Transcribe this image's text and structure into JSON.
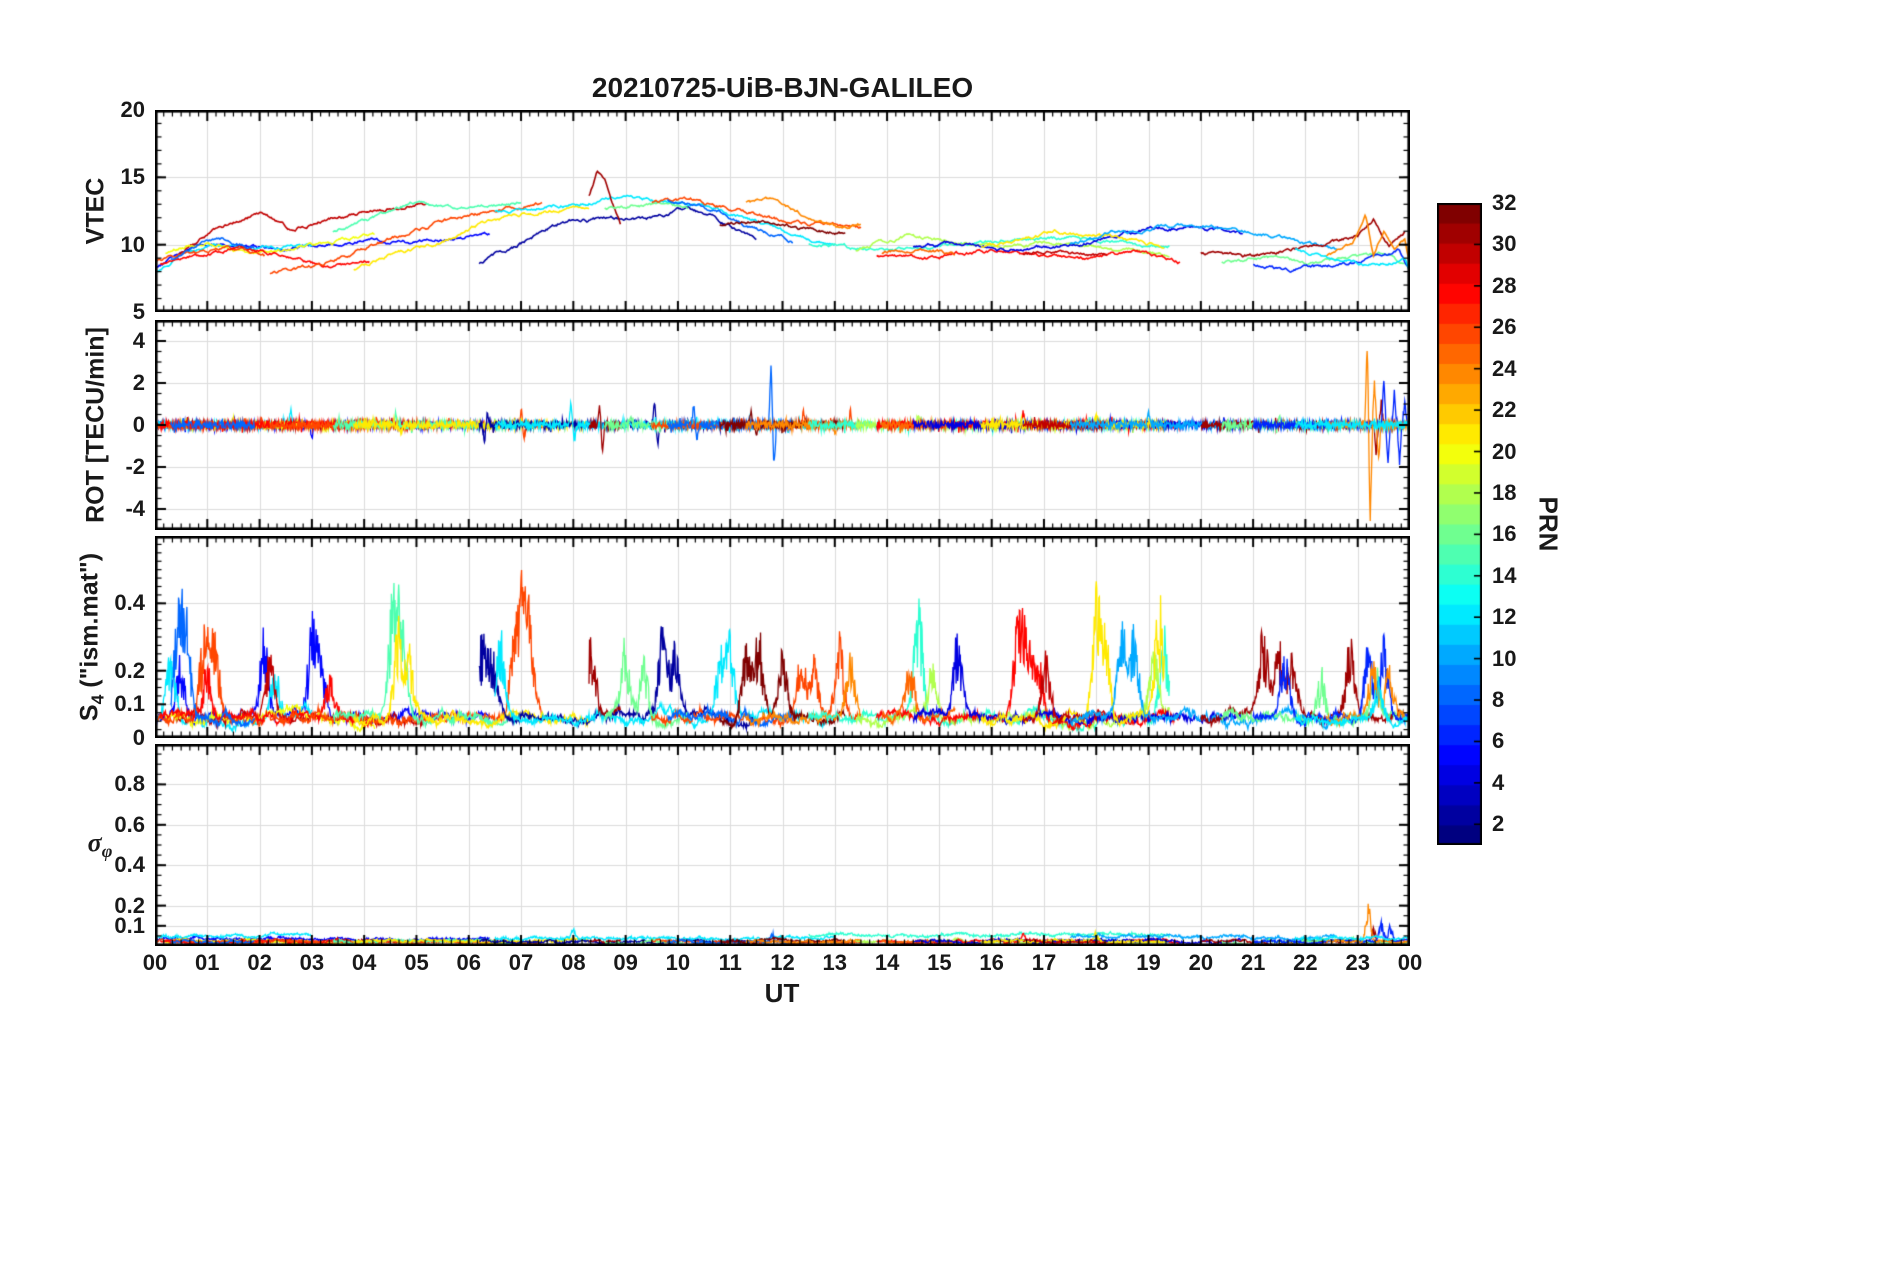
{
  "title": "20210725-UiB-BJN-GALILEO",
  "x_axis": {
    "label": "UT",
    "min": 0,
    "max": 24,
    "tick_labels": [
      "00",
      "01",
      "02",
      "03",
      "04",
      "05",
      "06",
      "07",
      "08",
      "09",
      "10",
      "11",
      "12",
      "13",
      "14",
      "15",
      "16",
      "17",
      "18",
      "19",
      "20",
      "21",
      "22",
      "23",
      "00"
    ]
  },
  "colorbar": {
    "label": "PRN",
    "vmin": 1,
    "vmax": 32,
    "colormap": "jet",
    "ticks": [
      2,
      4,
      6,
      8,
      10,
      12,
      14,
      16,
      18,
      20,
      22,
      24,
      26,
      28,
      30,
      32
    ]
  },
  "panels": {
    "vtec": {
      "ylabel": "VTEC",
      "ylim": [
        5,
        20
      ],
      "yticks": [
        5,
        10,
        15,
        20
      ],
      "minor": 1
    },
    "rot": {
      "ylabel": "ROT [TECU/min]",
      "ylim": [
        -5,
        5
      ],
      "yticks": [
        -4,
        -2,
        0,
        2,
        4
      ],
      "minor": 0.5
    },
    "s4": {
      "label_main": "S",
      "label_sub": "4",
      "label_rest": " (\"ism.mat\")",
      "ylim": [
        0,
        0.6
      ],
      "yticks": [
        0,
        0.1,
        0.2,
        0.4
      ],
      "minor": 0.025
    },
    "sigma": {
      "label_main": "σ",
      "label_sub": "φ",
      "ylim": [
        0,
        1
      ],
      "yticks": [
        0.1,
        0.2,
        0.4,
        0.6,
        0.8
      ],
      "minor": 0.05
    }
  },
  "chart_data": {
    "type": "line",
    "x_unit": "hours UT",
    "grid": true,
    "arcs": [
      {
        "prn": 5,
        "sb": 0.035,
        "x": [
          0,
          0.8,
          1.6,
          2.4,
          3.2,
          4,
          4.8,
          5.6,
          6.4
        ],
        "y": [
          8.3,
          9.9,
          10.1,
          9.6,
          10,
          10.3,
          10.1,
          10.4,
          10.9
        ]
      },
      {
        "prn": 12,
        "sb": 0.05,
        "x": [
          0,
          0.6,
          1.2,
          1.8,
          2.4,
          3
        ],
        "y": [
          7.8,
          9.6,
          10.1,
          9.9,
          9.7,
          10
        ]
      },
      {
        "prn": 30,
        "x": [
          0.4,
          1.2,
          2,
          2.6,
          3.2,
          4,
          4.6,
          5.2
        ],
        "y": [
          9.1,
          11.3,
          12.3,
          11.2,
          11.8,
          12.4,
          12.8,
          13
        ]
      },
      {
        "prn": 20,
        "x": [
          0.2,
          1,
          1.8,
          2.6,
          3.4,
          4.2
        ],
        "y": [
          9.3,
          10.4,
          9.2,
          9.6,
          10.2,
          10.6
        ]
      },
      {
        "prn": 26,
        "x": [
          0,
          0.7,
          1.4,
          2.1
        ],
        "y": [
          8.8,
          9.4,
          9.9,
          9.2
        ]
      },
      {
        "prn": 28,
        "x": [
          0.1,
          0.9,
          1.7,
          2.5,
          3.3,
          4.1
        ],
        "y": [
          8.6,
          9.2,
          9.8,
          9,
          8.3,
          8.8
        ]
      },
      {
        "prn": 8,
        "x": [
          0.3,
          1.1,
          1.9
        ],
        "y": [
          9,
          10.5,
          9.9
        ]
      },
      {
        "prn": 26,
        "x": [
          2.2,
          3,
          3.8,
          4.6,
          5.4,
          6.2,
          7,
          7.4
        ],
        "y": [
          7.9,
          8.4,
          9.4,
          10.6,
          11.6,
          12.3,
          12.9,
          13.1
        ]
      },
      {
        "prn": 15,
        "x": [
          3.4,
          4.2,
          5,
          5.8,
          6.6,
          7
        ],
        "y": [
          10.9,
          12,
          13.2,
          12.7,
          13,
          13.1
        ]
      },
      {
        "prn": 21,
        "x": [
          3.8,
          4.6,
          5.4,
          6.2,
          7,
          7.8,
          8.3
        ],
        "y": [
          8.2,
          9.4,
          10.1,
          11.4,
          12.3,
          12.7,
          12.9
        ]
      },
      {
        "prn": 2,
        "x": [
          6.2,
          7,
          7.8,
          8.6,
          9.4,
          10.2,
          11,
          11.5
        ],
        "y": [
          8.6,
          10.1,
          11.7,
          11.9,
          12,
          12.7,
          11.4,
          10.3
        ]
      },
      {
        "prn": 12,
        "sb": 0.04,
        "x": [
          6.5,
          7.3,
          8.1,
          8.9,
          9.7,
          10.5,
          11.3,
          12.1,
          13
        ],
        "y": [
          12.4,
          12.8,
          13.1,
          13.5,
          13.3,
          12.9,
          12,
          10.8,
          9.9
        ]
      },
      {
        "prn": 31,
        "x": [
          8.3,
          8.45,
          8.6,
          8.75,
          8.9
        ],
        "y": [
          13.6,
          15.4,
          14.7,
          12.9,
          11.4
        ]
      },
      {
        "prn": 16,
        "x": [
          8.6,
          9.4,
          10.2
        ],
        "y": [
          12.8,
          13,
          12.7
        ]
      },
      {
        "prn": 26,
        "x": [
          9.5,
          10.3,
          11.1,
          11.9,
          12.7,
          13.5
        ],
        "y": [
          13.2,
          13.4,
          12.6,
          11.9,
          11.5,
          11.3
        ]
      },
      {
        "prn": 8,
        "x": [
          9.8,
          10.4,
          11,
          11.6,
          12.2
        ],
        "y": [
          13.4,
          12.9,
          12.1,
          11,
          10.3
        ]
      },
      {
        "prn": 32,
        "x": [
          10.8,
          11.6,
          12.4,
          13.2
        ],
        "y": [
          11.5,
          11.8,
          11.2,
          10.9
        ]
      },
      {
        "prn": 24,
        "x": [
          11.3,
          11.9,
          12.5,
          13.1,
          13.5
        ],
        "y": [
          13.1,
          13.4,
          12.1,
          11.1,
          11.4
        ]
      },
      {
        "prn": 14,
        "sb": 0.055,
        "x": [
          12.5,
          13.5,
          14.5,
          15.5,
          16.5,
          17.5,
          18.4,
          19.4
        ],
        "y": [
          10.1,
          9.7,
          9.6,
          10.1,
          10.4,
          10.5,
          10.1,
          9.8
        ]
      },
      {
        "prn": 18,
        "x": [
          13.4,
          14.4,
          15.4,
          16.4,
          17.4,
          18.4,
          19.4
        ],
        "y": [
          9.6,
          10.7,
          10,
          9.9,
          10.1,
          9.6,
          9.3
        ]
      },
      {
        "prn": 28,
        "x": [
          13.8,
          14.8,
          15.8,
          16.8,
          17.8,
          18.8,
          19.6
        ],
        "y": [
          9.2,
          9,
          9.5,
          9.2,
          9,
          9.4,
          8.7
        ]
      },
      {
        "prn": 25,
        "x": [
          13.9,
          14.6,
          15.3
        ],
        "y": [
          9.4,
          9.7,
          9.3
        ]
      },
      {
        "prn": 4,
        "x": [
          14.5,
          15.4,
          16.3,
          17.2,
          18.1,
          19,
          19.9,
          20.8
        ],
        "y": [
          9.9,
          10.1,
          9.6,
          9.9,
          10.4,
          11.1,
          11.4,
          10.7
        ]
      },
      {
        "prn": 21,
        "x": [
          15.8,
          16.5,
          17.2,
          17.9,
          18.6,
          19.3
        ],
        "y": [
          9.9,
          10.3,
          11,
          10.7,
          10.3,
          10
        ]
      },
      {
        "prn": 30,
        "x": [
          16.6,
          17.4,
          18.2
        ],
        "y": [
          9.3,
          9.5,
          9.2
        ]
      },
      {
        "prn": 10,
        "sb": 0.045,
        "x": [
          17.5,
          18.4,
          19.3,
          20.2,
          21.1,
          22,
          22.6
        ],
        "y": [
          10.1,
          10.9,
          11.3,
          11.4,
          10.9,
          10.1,
          9.6
        ]
      },
      {
        "prn": 31,
        "x": [
          20,
          20.8,
          21.6,
          22.4,
          23,
          23.3,
          23.6,
          23.9
        ],
        "y": [
          9.4,
          9.1,
          9.6,
          10.1,
          10.6,
          11.8,
          9.9,
          10.9
        ]
      },
      {
        "prn": 16,
        "x": [
          20.4,
          21.2,
          22,
          22.8,
          23.6,
          24
        ],
        "y": [
          8.8,
          9.1,
          8.6,
          8.9,
          9.3,
          8.1
        ]
      },
      {
        "prn": 6,
        "x": [
          21,
          21.7,
          22.4,
          23.1,
          23.8,
          24
        ],
        "y": [
          8.6,
          8.1,
          8.4,
          8.8,
          9.6,
          8
        ]
      },
      {
        "prn": 24,
        "x": [
          22.4,
          22.9,
          23.15,
          23.3,
          23.5,
          23.7,
          23.9,
          24
        ],
        "y": [
          9.1,
          10,
          12.4,
          9.3,
          11.2,
          9.8,
          10.4,
          8.2
        ]
      },
      {
        "prn": 12,
        "sb": 0.04,
        "x": [
          21.8,
          22.5,
          23.2,
          23.9,
          24
        ],
        "y": [
          9.6,
          9.1,
          8.6,
          8.9,
          8
        ]
      }
    ],
    "rot": {
      "noise_amp": 0.18,
      "spikes": [
        [
          8,
          11.78,
          2.9
        ],
        [
          8,
          11.84,
          -2.0
        ],
        [
          24,
          23.18,
          3.6
        ],
        [
          24,
          23.24,
          -4.4
        ],
        [
          24,
          23.32,
          2.0
        ],
        [
          24,
          23.4,
          -1.6
        ],
        [
          6,
          23.5,
          2.1
        ],
        [
          6,
          23.58,
          -1.8
        ],
        [
          6,
          23.7,
          1.6
        ],
        [
          6,
          23.8,
          -1.9
        ],
        [
          6,
          23.9,
          1.2
        ],
        [
          31,
          23.35,
          -1.4
        ],
        [
          31,
          23.45,
          1.1
        ],
        [
          31,
          8.5,
          0.9
        ],
        [
          31,
          8.56,
          -1.3
        ],
        [
          2,
          9.55,
          1.1
        ],
        [
          2,
          9.62,
          -0.9
        ],
        [
          8,
          10.3,
          0.9
        ],
        [
          8,
          10.36,
          -0.7
        ],
        [
          12,
          7.95,
          1.0
        ],
        [
          12,
          8.02,
          -0.8
        ],
        [
          26,
          13.3,
          0.7
        ],
        [
          2,
          6.3,
          -0.8
        ],
        [
          2,
          6.36,
          0.6
        ],
        [
          12,
          2.6,
          0.7
        ],
        [
          5,
          3.0,
          -0.6
        ],
        [
          18,
          14.6,
          0.6
        ],
        [
          10,
          19.0,
          0.6
        ],
        [
          16,
          21.5,
          0.5
        ],
        [
          28,
          16.6,
          0.6
        ],
        [
          21,
          18.0,
          0.5
        ],
        [
          26,
          12.4,
          0.6
        ],
        [
          24,
          13.0,
          -0.5
        ],
        [
          15,
          4.6,
          0.5
        ],
        [
          21,
          4.7,
          -0.5
        ],
        [
          26,
          7.0,
          0.6
        ],
        [
          26,
          7.06,
          -0.5
        ],
        [
          16,
          9.1,
          0.5
        ],
        [
          32,
          11.4,
          0.6
        ],
        [
          32,
          11.5,
          -0.5
        ]
      ]
    },
    "s4": {
      "baseline": 0.06,
      "bursts": [
        [
          8,
          0.45,
          0.34
        ],
        [
          8,
          0.6,
          0.28
        ],
        [
          12,
          0.3,
          0.24
        ],
        [
          5,
          0.5,
          0.2
        ],
        [
          26,
          0.95,
          0.33
        ],
        [
          26,
          1.15,
          0.27
        ],
        [
          28,
          1.0,
          0.18
        ],
        [
          5,
          2.1,
          0.26
        ],
        [
          30,
          2.2,
          0.2
        ],
        [
          12,
          2.3,
          0.18
        ],
        [
          5,
          3.0,
          0.31
        ],
        [
          5,
          3.18,
          0.24
        ],
        [
          28,
          3.35,
          0.14
        ],
        [
          15,
          4.55,
          0.44
        ],
        [
          15,
          4.72,
          0.33
        ],
        [
          21,
          4.65,
          0.3
        ],
        [
          21,
          4.85,
          0.24
        ],
        [
          2,
          6.25,
          0.29
        ],
        [
          2,
          6.45,
          0.2
        ],
        [
          12,
          6.6,
          0.27
        ],
        [
          26,
          6.85,
          0.22
        ],
        [
          26,
          7.0,
          0.36
        ],
        [
          26,
          7.15,
          0.3
        ],
        [
          31,
          8.35,
          0.26
        ],
        [
          16,
          9.0,
          0.24
        ],
        [
          16,
          9.35,
          0.21
        ],
        [
          2,
          9.7,
          0.29
        ],
        [
          2,
          9.95,
          0.24
        ],
        [
          12,
          10.8,
          0.2
        ],
        [
          12,
          11.0,
          0.24
        ],
        [
          32,
          11.3,
          0.27
        ],
        [
          32,
          11.55,
          0.29
        ],
        [
          32,
          12.0,
          0.2
        ],
        [
          26,
          12.35,
          0.21
        ],
        [
          26,
          12.6,
          0.19
        ],
        [
          26,
          13.1,
          0.26
        ],
        [
          24,
          13.3,
          0.22
        ],
        [
          25,
          14.45,
          0.2
        ],
        [
          14,
          14.6,
          0.37
        ],
        [
          18,
          14.85,
          0.2
        ],
        [
          4,
          15.35,
          0.24
        ],
        [
          28,
          16.5,
          0.3
        ],
        [
          28,
          16.68,
          0.25
        ],
        [
          28,
          16.9,
          0.2
        ],
        [
          30,
          17.05,
          0.21
        ],
        [
          21,
          18.0,
          0.39
        ],
        [
          21,
          18.18,
          0.3
        ],
        [
          10,
          18.5,
          0.29
        ],
        [
          10,
          18.72,
          0.27
        ],
        [
          18,
          19.1,
          0.2
        ],
        [
          21,
          19.2,
          0.39
        ],
        [
          14,
          19.3,
          0.28
        ],
        [
          31,
          21.2,
          0.27
        ],
        [
          31,
          21.5,
          0.24
        ],
        [
          31,
          21.75,
          0.2
        ],
        [
          6,
          21.6,
          0.21
        ],
        [
          16,
          22.3,
          0.17
        ],
        [
          31,
          22.85,
          0.24
        ],
        [
          6,
          23.2,
          0.24
        ],
        [
          6,
          23.5,
          0.27
        ],
        [
          24,
          23.3,
          0.2
        ],
        [
          24,
          23.6,
          0.17
        ],
        [
          12,
          23.4,
          0.15
        ],
        [
          16,
          23.35,
          0.16
        ]
      ]
    },
    "sigma": {
      "baseline": 0.022,
      "bursts": [
        [
          24,
          23.2,
          0.21
        ],
        [
          6,
          23.45,
          0.11
        ],
        [
          6,
          23.62,
          0.09
        ],
        [
          31,
          23.3,
          0.07
        ],
        [
          8,
          11.8,
          0.05
        ],
        [
          12,
          8.0,
          0.05
        ],
        [
          28,
          16.6,
          0.04
        ],
        [
          21,
          18.0,
          0.04
        ]
      ]
    }
  }
}
